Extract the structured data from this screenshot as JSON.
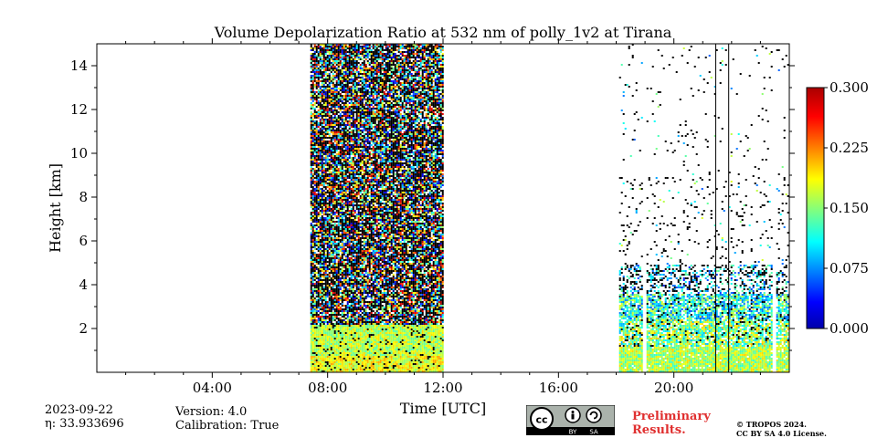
{
  "chart_data": {
    "type": "heatmap",
    "title": "Volume Depolarization Ratio at 532 nm of polly_1v2 at Tirana",
    "xlabel": "Time [UTC]",
    "ylabel": "Height [km]",
    "xlim_hours": [
      0,
      24
    ],
    "ylim_km": [
      0,
      15
    ],
    "x_ticks": [
      {
        "hour": 4,
        "label": "04:00"
      },
      {
        "hour": 8,
        "label": "08:00"
      },
      {
        "hour": 12,
        "label": "12:00"
      },
      {
        "hour": 16,
        "label": "16:00"
      },
      {
        "hour": 20,
        "label": "20:00"
      }
    ],
    "y_ticks": [
      {
        "km": 2,
        "label": "2"
      },
      {
        "km": 4,
        "label": "4"
      },
      {
        "km": 6,
        "label": "6"
      },
      {
        "km": 8,
        "label": "8"
      },
      {
        "km": 10,
        "label": "10"
      },
      {
        "km": 12,
        "label": "12"
      },
      {
        "km": 14,
        "label": "14"
      }
    ],
    "colorbar": {
      "min": 0.0,
      "max": 0.3,
      "colormap": "jet",
      "ticks": [
        {
          "value": 0.0,
          "label": "0.000"
        },
        {
          "value": 0.075,
          "label": "0.075"
        },
        {
          "value": 0.15,
          "label": "0.150"
        },
        {
          "value": 0.225,
          "label": "0.225"
        },
        {
          "value": 0.3,
          "label": "0.300"
        }
      ]
    },
    "measurement_periods": [
      {
        "start_hour": 7.4,
        "end_hour": 12.0,
        "top_km": 15.0,
        "character": "dense noisy signal, high depolarization in boundary layer below 2 km"
      },
      {
        "start_hour": 18.1,
        "end_hour": 24.0,
        "top_km": 15.0,
        "character": "sparse noise above 4 km, aerosol layer below 3.5 km"
      }
    ],
    "gaps_hours": [
      18.95,
      23.45
    ],
    "vertical_lines_hours": [
      21.45,
      21.9
    ]
  },
  "info": {
    "date": "2023-09-22",
    "eta": "η: 33.933696",
    "version": "Version: 4.0",
    "calibration": "Calibration: True",
    "preliminary_line1": "Preliminary",
    "preliminary_line2": "Results.",
    "copyright_line1": "© TROPOS 2024.",
    "copyright_line2": "CC BY SA 4.0 License.",
    "cc_text": "cc",
    "by_text": "BY",
    "sa_text": "SA"
  }
}
